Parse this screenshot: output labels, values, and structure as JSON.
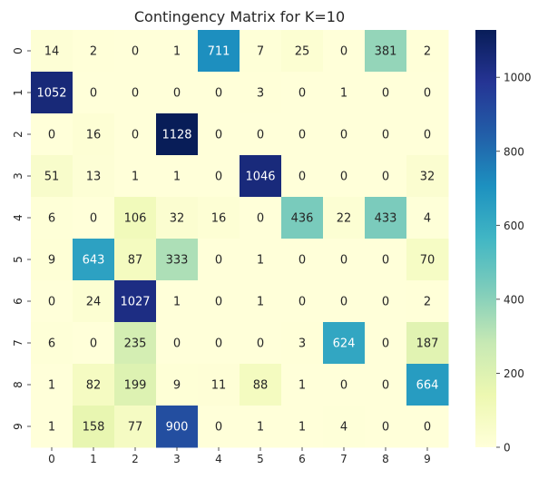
{
  "chart_data": {
    "type": "heatmap",
    "title": "Contingency Matrix for K=10",
    "xlabel": "",
    "ylabel": "",
    "x_categories": [
      "0",
      "1",
      "2",
      "3",
      "4",
      "5",
      "6",
      "7",
      "8",
      "9"
    ],
    "y_categories": [
      "0",
      "1",
      "2",
      "3",
      "4",
      "5",
      "6",
      "7",
      "8",
      "9"
    ],
    "values": [
      [
        14,
        2,
        0,
        1,
        711,
        7,
        25,
        0,
        381,
        2
      ],
      [
        1052,
        0,
        0,
        0,
        0,
        3,
        0,
        1,
        0,
        0
      ],
      [
        0,
        16,
        0,
        1128,
        0,
        0,
        0,
        0,
        0,
        0
      ],
      [
        51,
        13,
        1,
        1,
        0,
        1046,
        0,
        0,
        0,
        32
      ],
      [
        6,
        0,
        106,
        32,
        16,
        0,
        436,
        22,
        433,
        4
      ],
      [
        9,
        643,
        87,
        333,
        0,
        1,
        0,
        0,
        0,
        70
      ],
      [
        0,
        24,
        1027,
        1,
        0,
        1,
        0,
        0,
        0,
        2
      ],
      [
        6,
        0,
        235,
        0,
        0,
        0,
        3,
        624,
        0,
        187
      ],
      [
        1,
        82,
        199,
        9,
        11,
        88,
        1,
        0,
        0,
        664
      ],
      [
        1,
        158,
        77,
        900,
        0,
        1,
        1,
        4,
        0,
        0
      ]
    ],
    "colormap": "YlGnBu",
    "vmin": 0,
    "vmax": 1128,
    "colorbar_ticks": [
      0,
      200,
      400,
      600,
      800,
      1000
    ],
    "annotation_dark_text_color": "#262626",
    "annotation_light_text_color": "#ffffff"
  }
}
